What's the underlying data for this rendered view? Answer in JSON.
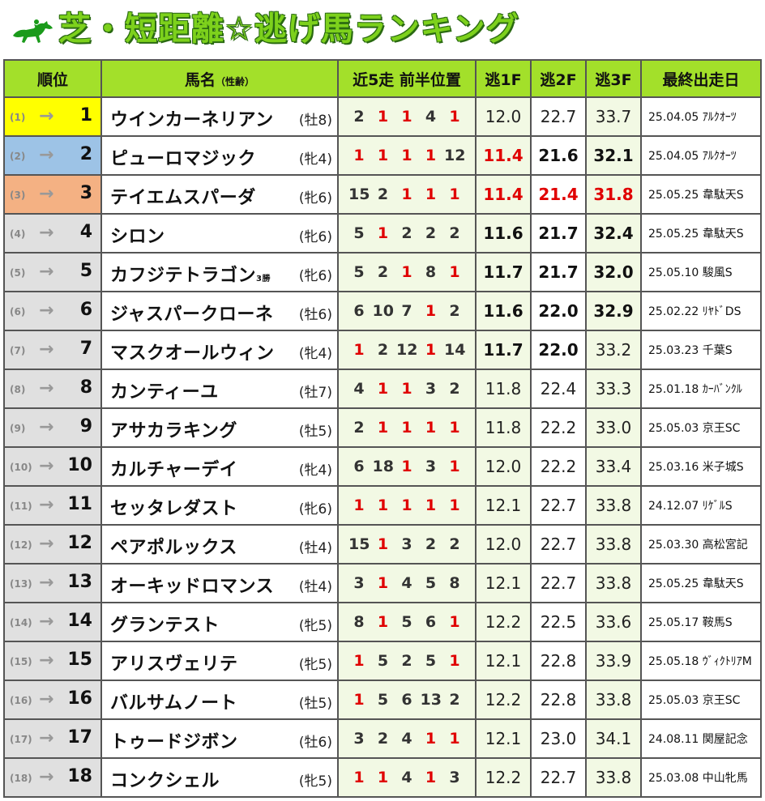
{
  "title": "芝・短距離☆逃げ馬ランキング",
  "title_icon": "horse-jockey-icon",
  "colors": {
    "header_bg": "#a3e02a",
    "title_green": "#7dd11c",
    "fast_red": "#e00000",
    "rank1": "#ffff00",
    "rank2": "#9dc3e6",
    "rank3": "#f4b183"
  },
  "header": {
    "rank": "順位",
    "name": "馬名",
    "name_sub": "（性齢）",
    "positions": "近5走 前半位置",
    "f1": "逃1F",
    "f2": "逃2F",
    "f3": "逃3F",
    "last": "最終出走日"
  },
  "rows": [
    {
      "prev": "(1)",
      "rank": "1",
      "name": "ウインカーネリアン",
      "sex": "(牡8)",
      "pos": [
        "2",
        "1",
        "1",
        "4",
        "1"
      ],
      "f1": "12.0",
      "f2": "22.7",
      "f3": "33.7",
      "last": "25.04.05 ｱﾙｸｵｰﾂ"
    },
    {
      "prev": "(2)",
      "rank": "2",
      "name": "ピューロマジック",
      "sex": "(牝4)",
      "pos": [
        "1",
        "1",
        "1",
        "1",
        "12"
      ],
      "f1": "11.4",
      "f2": "21.6",
      "f3": "32.1",
      "last": "25.04.05 ｱﾙｸｵｰﾂ"
    },
    {
      "prev": "(3)",
      "rank": "3",
      "name": "テイエムスパーダ",
      "sex": "(牝6)",
      "pos": [
        "15",
        "2",
        "1",
        "1",
        "1"
      ],
      "f1": "11.4",
      "f2": "21.4",
      "f3": "31.8",
      "last": "25.05.25 韋駄天S"
    },
    {
      "prev": "(4)",
      "rank": "4",
      "name": "シロン",
      "sex": "(牝6)",
      "pos": [
        "5",
        "1",
        "2",
        "2",
        "2"
      ],
      "f1": "11.6",
      "f2": "21.7",
      "f3": "32.4",
      "last": "25.05.25 韋駄天S"
    },
    {
      "prev": "(5)",
      "rank": "5",
      "name": "カフジテトラゴン",
      "win": "3勝",
      "sex": "(牝6)",
      "pos": [
        "5",
        "2",
        "1",
        "8",
        "1"
      ],
      "f1": "11.7",
      "f2": "21.7",
      "f3": "32.0",
      "last": "25.05.10 駿風S"
    },
    {
      "prev": "(6)",
      "rank": "6",
      "name": "ジャスパークローネ",
      "sex": "(牡6)",
      "pos": [
        "6",
        "10",
        "7",
        "1",
        "2"
      ],
      "f1": "11.6",
      "f2": "22.0",
      "f3": "32.9",
      "last": "25.02.22 ﾘﾔﾄﾞDS"
    },
    {
      "prev": "(7)",
      "rank": "7",
      "name": "マスクオールウィン",
      "sex": "(牝4)",
      "pos": [
        "1",
        "2",
        "12",
        "1",
        "14"
      ],
      "f1": "11.7",
      "f2": "22.0",
      "f3": "33.2",
      "last": "25.03.23 千葉S"
    },
    {
      "prev": "(8)",
      "rank": "8",
      "name": "カンティーユ",
      "sex": "(牡7)",
      "pos": [
        "4",
        "1",
        "1",
        "3",
        "2"
      ],
      "f1": "11.8",
      "f2": "22.4",
      "f3": "33.3",
      "last": "25.01.18 ｶｰﾊﾞﾝｸﾙ"
    },
    {
      "prev": "(9)",
      "rank": "9",
      "name": "アサカラキング",
      "sex": "(牡5)",
      "pos": [
        "2",
        "1",
        "1",
        "1",
        "1"
      ],
      "f1": "11.8",
      "f2": "22.2",
      "f3": "33.0",
      "last": "25.05.03 京王SC"
    },
    {
      "prev": "(10)",
      "rank": "10",
      "name": "カルチャーデイ",
      "sex": "(牝4)",
      "pos": [
        "6",
        "18",
        "1",
        "3",
        "1"
      ],
      "f1": "12.0",
      "f2": "22.2",
      "f3": "33.4",
      "last": "25.03.16 米子城S"
    },
    {
      "prev": "(11)",
      "rank": "11",
      "name": "セッタレダスト",
      "sex": "(牝6)",
      "pos": [
        "1",
        "1",
        "1",
        "1",
        "1"
      ],
      "f1": "12.1",
      "f2": "22.7",
      "f3": "33.8",
      "last": "24.12.07 ﾘｹﾞﾙS"
    },
    {
      "prev": "(12)",
      "rank": "12",
      "name": "ペアポルックス",
      "sex": "(牡4)",
      "pos": [
        "15",
        "1",
        "3",
        "2",
        "2"
      ],
      "f1": "12.0",
      "f2": "22.7",
      "f3": "33.8",
      "last": "25.03.30 高松宮記"
    },
    {
      "prev": "(13)",
      "rank": "13",
      "name": "オーキッドロマンス",
      "sex": "(牡4)",
      "pos": [
        "3",
        "1",
        "4",
        "5",
        "8"
      ],
      "f1": "12.1",
      "f2": "22.7",
      "f3": "33.8",
      "last": "25.05.25 韋駄天S"
    },
    {
      "prev": "(14)",
      "rank": "14",
      "name": "グランテスト",
      "sex": "(牝5)",
      "pos": [
        "8",
        "1",
        "5",
        "6",
        "1"
      ],
      "f1": "12.2",
      "f2": "22.5",
      "f3": "33.6",
      "last": "25.05.17 鞍馬S"
    },
    {
      "prev": "(15)",
      "rank": "15",
      "name": "アリスヴェリテ",
      "sex": "(牝5)",
      "pos": [
        "1",
        "5",
        "2",
        "5",
        "1"
      ],
      "f1": "12.1",
      "f2": "22.8",
      "f3": "33.9",
      "last": "25.05.18 ｳﾞｨｸﾄﾘｱM"
    },
    {
      "prev": "(16)",
      "rank": "16",
      "name": "バルサムノート",
      "sex": "(牡5)",
      "pos": [
        "1",
        "5",
        "6",
        "13",
        "2"
      ],
      "f1": "12.2",
      "f2": "22.8",
      "f3": "33.8",
      "last": "25.05.03 京王SC"
    },
    {
      "prev": "(17)",
      "rank": "17",
      "name": "トゥードジボン",
      "sex": "(牡6)",
      "pos": [
        "3",
        "2",
        "4",
        "1",
        "1"
      ],
      "f1": "12.1",
      "f2": "23.0",
      "f3": "34.1",
      "last": "24.08.11 関屋記念"
    },
    {
      "prev": "(18)",
      "rank": "18",
      "name": "コンクシェル",
      "sex": "(牝5)",
      "pos": [
        "1",
        "1",
        "4",
        "1",
        "3"
      ],
      "f1": "12.2",
      "f2": "22.7",
      "f3": "33.8",
      "last": "25.03.08 中山牝馬"
    }
  ],
  "style_flags": {
    "bold_f1_ranks": [
      "2",
      "3",
      "4",
      "5",
      "6",
      "7"
    ],
    "red_f1_ranks": [
      "2",
      "3"
    ],
    "bold_f2_ranks": [
      "2",
      "3",
      "4",
      "5",
      "6",
      "7"
    ],
    "red_f2_ranks": [
      "3"
    ],
    "bold_f3_ranks": [
      "2",
      "3",
      "4",
      "5",
      "6"
    ],
    "red_f3_ranks": [
      "3"
    ]
  }
}
